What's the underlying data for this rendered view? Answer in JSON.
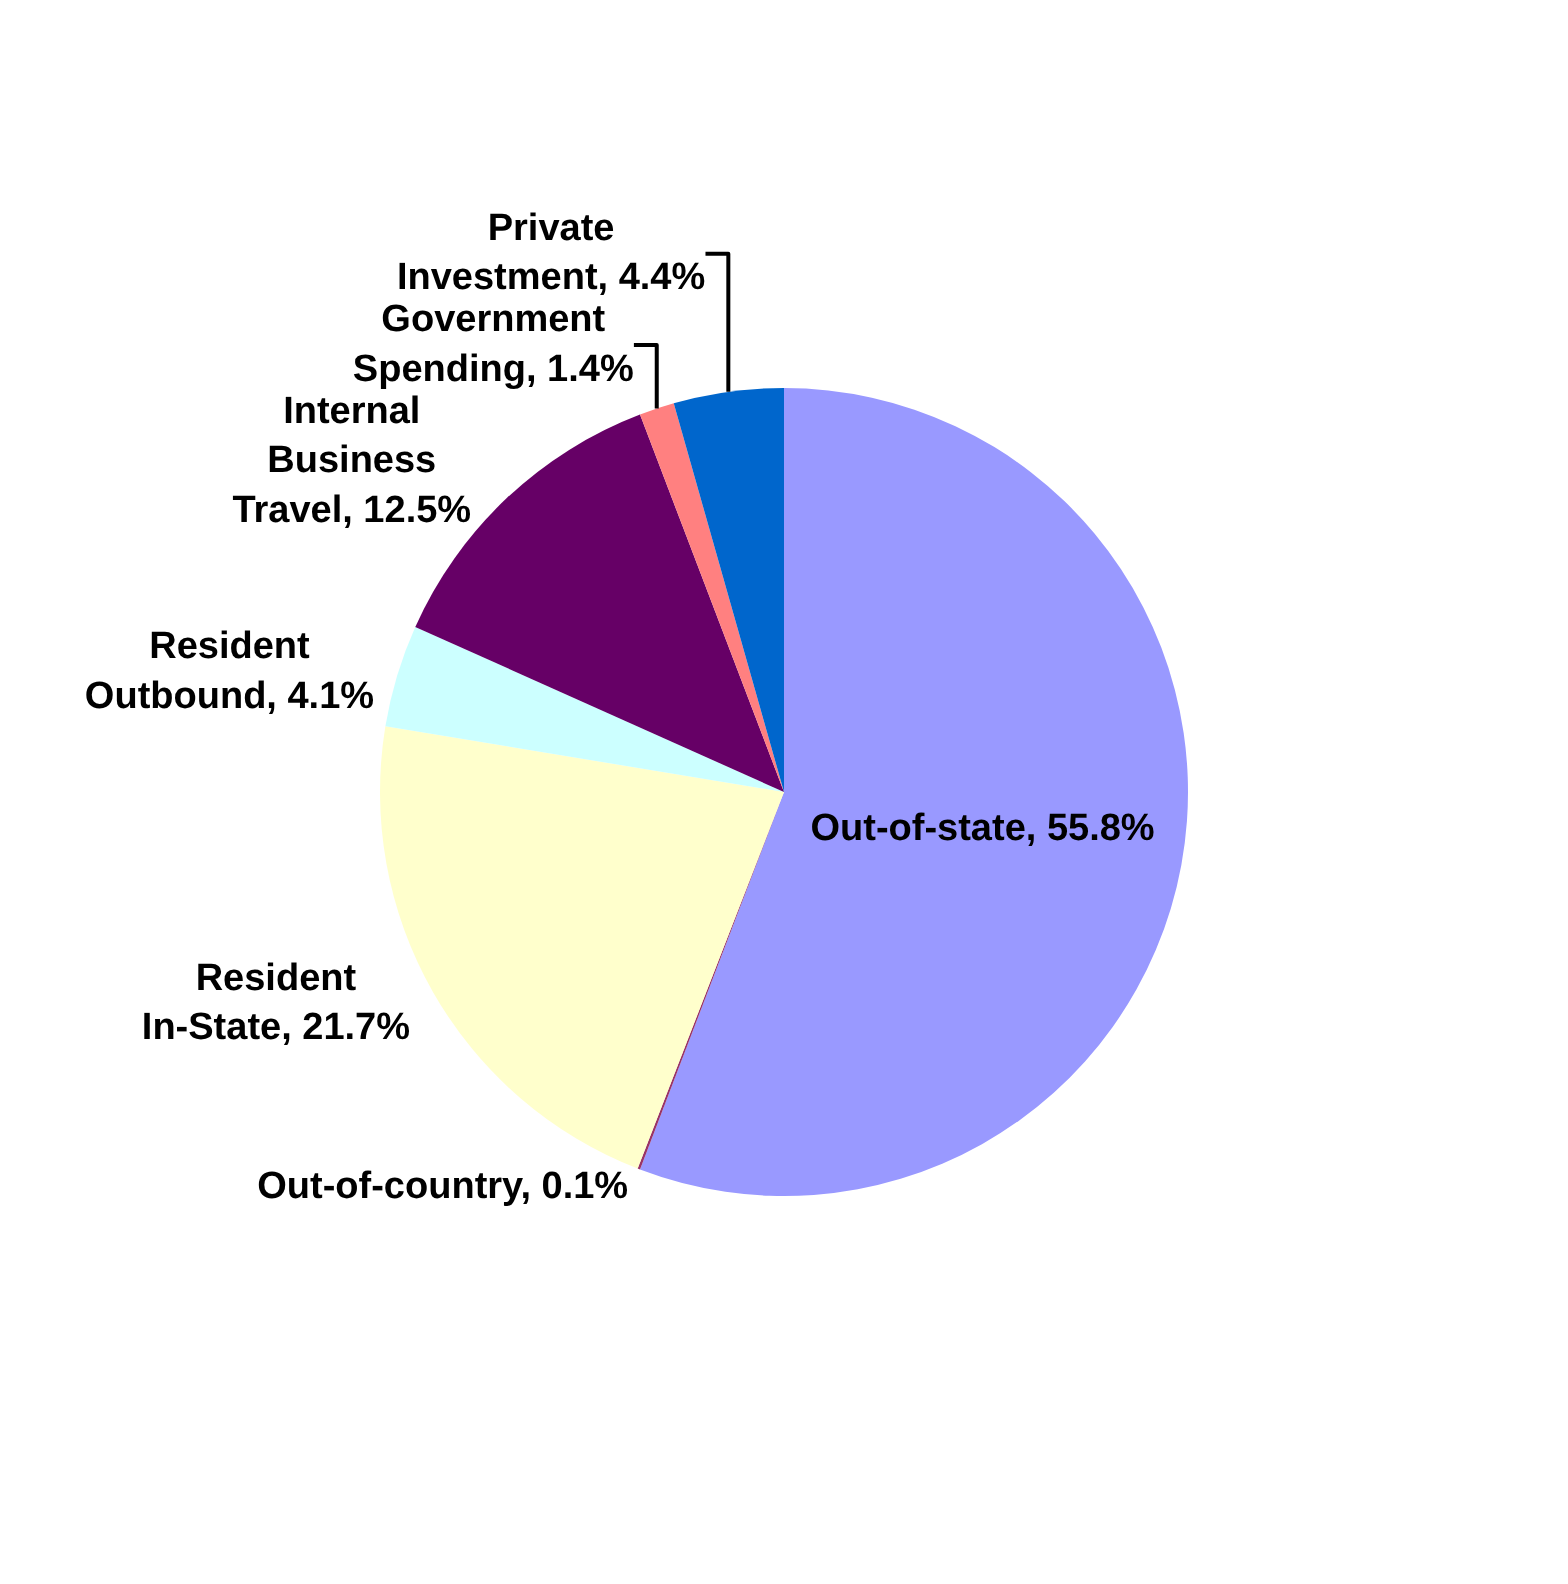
{
  "chart_data": {
    "type": "pie",
    "categories": [
      "Out-of-state",
      "Out-of-country",
      "Resident In-State",
      "Resident Outbound",
      "Internal Business Travel",
      "Government Spending",
      "Private Investment"
    ],
    "values": [
      55.8,
      0.1,
      21.7,
      4.1,
      12.5,
      1.4,
      4.4
    ],
    "value_labels": [
      "55.8%",
      "0.1%",
      "21.7%",
      "4.1%",
      "12.5%",
      "1.4%",
      "4.4%"
    ],
    "colors": [
      "#9999ff",
      "#993366",
      "#ffffcc",
      "#ccffff",
      "#660066",
      "#ff8080",
      "#0066cc"
    ],
    "legend": false
  }
}
